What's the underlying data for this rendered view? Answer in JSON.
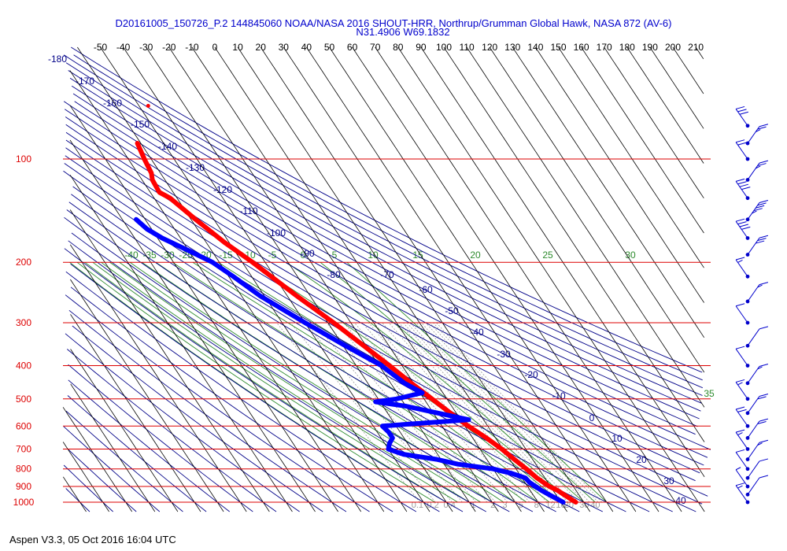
{
  "chart_data": {
    "type": "skew-t log-p sounding",
    "title": "D20161005_150726_P.2 144845060 NOAA/NASA 2016 SHOUT-HRR, Northrup/Grumman Global Hawk, NASA 872 (AV-6)",
    "subtitle": "N31.4906 W69.1832",
    "footer": "Aspen V3.3, 05 Oct 2016  16:04 UTC",
    "top_tick_labels": [
      "-50",
      "-40",
      "-30",
      "-20",
      "-10",
      "0",
      "10",
      "20",
      "30",
      "40",
      "50",
      "60",
      "70",
      "80",
      "90",
      "100",
      "110",
      "120",
      "130",
      "140",
      "150",
      "160",
      "170",
      "180",
      "190",
      "200",
      "210"
    ],
    "pressure_labels": [
      "100",
      "200",
      "300",
      "400",
      "500",
      "600",
      "700",
      "800",
      "900",
      "1000"
    ],
    "pressure_levels": [
      100,
      200,
      300,
      400,
      500,
      600,
      700,
      800,
      900,
      1000
    ],
    "dry_adiabat_labels": [
      "-180",
      "-170",
      "-160",
      "-150",
      "-140",
      "-130",
      "-120",
      "-110",
      "-100",
      "-90",
      "-80",
      "-70",
      "-60",
      "-50",
      "-40",
      "-30",
      "-20",
      "-10",
      "0",
      "10",
      "20",
      "30",
      "40"
    ],
    "moist_adiabat_labels": [
      "-40",
      "-35",
      "-30",
      "-25",
      "-20",
      "-15",
      "-10",
      "-5",
      "0",
      "5",
      "10",
      "15",
      "20",
      "25",
      "30",
      "35"
    ],
    "mixing_ratio_labels": [
      "0.1",
      "0.2",
      "0.4",
      "1",
      "2",
      "3",
      "5",
      "8",
      "12",
      "16",
      "20",
      "30",
      "40"
    ],
    "colors": {
      "pressure_lines": "#dd0000",
      "pressure_labels": "#dd0000",
      "temperature": "#ff0000",
      "dewpoint": "#0000ff",
      "isotherm_labels": "#000000",
      "dry_adiabats": "#000088",
      "moist_adiabats": "#2e8b2e",
      "mixing_ratio": "#9a9a9a",
      "wind_barbs": "#0000cc"
    },
    "temperature_profile": [
      {
        "p": 1000,
        "t": 26.5
      },
      {
        "p": 975,
        "t": 25.0
      },
      {
        "p": 950,
        "t": 23.5
      },
      {
        "p": 925,
        "t": 22.0
      },
      {
        "p": 900,
        "t": 19.5
      },
      {
        "p": 850,
        "t": 16.5
      },
      {
        "p": 800,
        "t": 14.5
      },
      {
        "p": 750,
        "t": 12.0
      },
      {
        "p": 700,
        "t": 9.5
      },
      {
        "p": 650,
        "t": 6.0
      },
      {
        "p": 600,
        "t": 1.5
      },
      {
        "p": 550,
        "t": -2.5
      },
      {
        "p": 500,
        "t": -6.5
      },
      {
        "p": 450,
        "t": -11.0
      },
      {
        "p": 400,
        "t": -15.5
      },
      {
        "p": 350,
        "t": -21.0
      },
      {
        "p": 300,
        "t": -27.5
      },
      {
        "p": 250,
        "t": -36.0
      },
      {
        "p": 200,
        "t": -45.5
      },
      {
        "p": 175,
        "t": -52.0
      },
      {
        "p": 150,
        "t": -58.0
      },
      {
        "p": 130,
        "t": -63.0
      },
      {
        "p": 125,
        "t": -66.0
      },
      {
        "p": 115,
        "t": -65.5
      },
      {
        "p": 110,
        "t": -64.0
      },
      {
        "p": 100,
        "t": -63.0
      },
      {
        "p": 90,
        "t": -61.5
      }
    ],
    "dewpoint_profile": [
      {
        "p": 1000,
        "t": 21.0
      },
      {
        "p": 975,
        "t": 19.0
      },
      {
        "p": 950,
        "t": 17.0
      },
      {
        "p": 925,
        "t": 15.0
      },
      {
        "p": 900,
        "t": 13.5
      },
      {
        "p": 875,
        "t": 12.0
      },
      {
        "p": 850,
        "t": 11.5
      },
      {
        "p": 825,
        "t": 7.0
      },
      {
        "p": 800,
        "t": 0.0
      },
      {
        "p": 775,
        "t": -14.0
      },
      {
        "p": 750,
        "t": -22.0
      },
      {
        "p": 725,
        "t": -35.0
      },
      {
        "p": 700,
        "t": -40.0
      },
      {
        "p": 675,
        "t": -38.0
      },
      {
        "p": 650,
        "t": -35.0
      },
      {
        "p": 625,
        "t": -35.0
      },
      {
        "p": 600,
        "t": -36.0
      },
      {
        "p": 575,
        "t": 3.5
      },
      {
        "p": 550,
        "t": -8.0
      },
      {
        "p": 525,
        "t": -20.0
      },
      {
        "p": 510,
        "t": -32.0
      },
      {
        "p": 500,
        "t": -22.0
      },
      {
        "p": 480,
        "t": -9.0
      },
      {
        "p": 450,
        "t": -14.0
      },
      {
        "p": 400,
        "t": -19.0
      },
      {
        "p": 350,
        "t": -29.0
      },
      {
        "p": 300,
        "t": -40.0
      },
      {
        "p": 250,
        "t": -52.0
      },
      {
        "p": 220,
        "t": -58.0
      },
      {
        "p": 200,
        "t": -63.0
      },
      {
        "p": 185,
        "t": -70.0
      },
      {
        "p": 170,
        "t": -78.0
      },
      {
        "p": 160,
        "t": -82.0
      },
      {
        "p": 150,
        "t": -84.0
      }
    ],
    "wind_barbs": [
      {
        "p": 80,
        "speed": 30
      },
      {
        "p": 90,
        "speed": 25
      },
      {
        "p": 100,
        "speed": 20
      },
      {
        "p": 115,
        "speed": 25
      },
      {
        "p": 130,
        "speed": 40
      },
      {
        "p": 150,
        "speed": 45
      },
      {
        "p": 170,
        "speed": 40
      },
      {
        "p": 190,
        "speed": 30
      },
      {
        "p": 220,
        "speed": 15
      },
      {
        "p": 260,
        "speed": 15
      },
      {
        "p": 300,
        "speed": 10
      },
      {
        "p": 350,
        "speed": 10
      },
      {
        "p": 400,
        "speed": 10
      },
      {
        "p": 450,
        "speed": 15
      },
      {
        "p": 500,
        "speed": 15
      },
      {
        "p": 550,
        "speed": 20
      },
      {
        "p": 600,
        "speed": 20
      },
      {
        "p": 650,
        "speed": 20
      },
      {
        "p": 700,
        "speed": 15
      },
      {
        "p": 750,
        "speed": 15
      },
      {
        "p": 800,
        "speed": 10
      },
      {
        "p": 850,
        "speed": 10
      },
      {
        "p": 900,
        "speed": 5
      },
      {
        "p": 950,
        "speed": 10
      },
      {
        "p": 1000,
        "speed": 15
      }
    ],
    "isolated_point": {
      "p": 70,
      "t": -46
    }
  }
}
